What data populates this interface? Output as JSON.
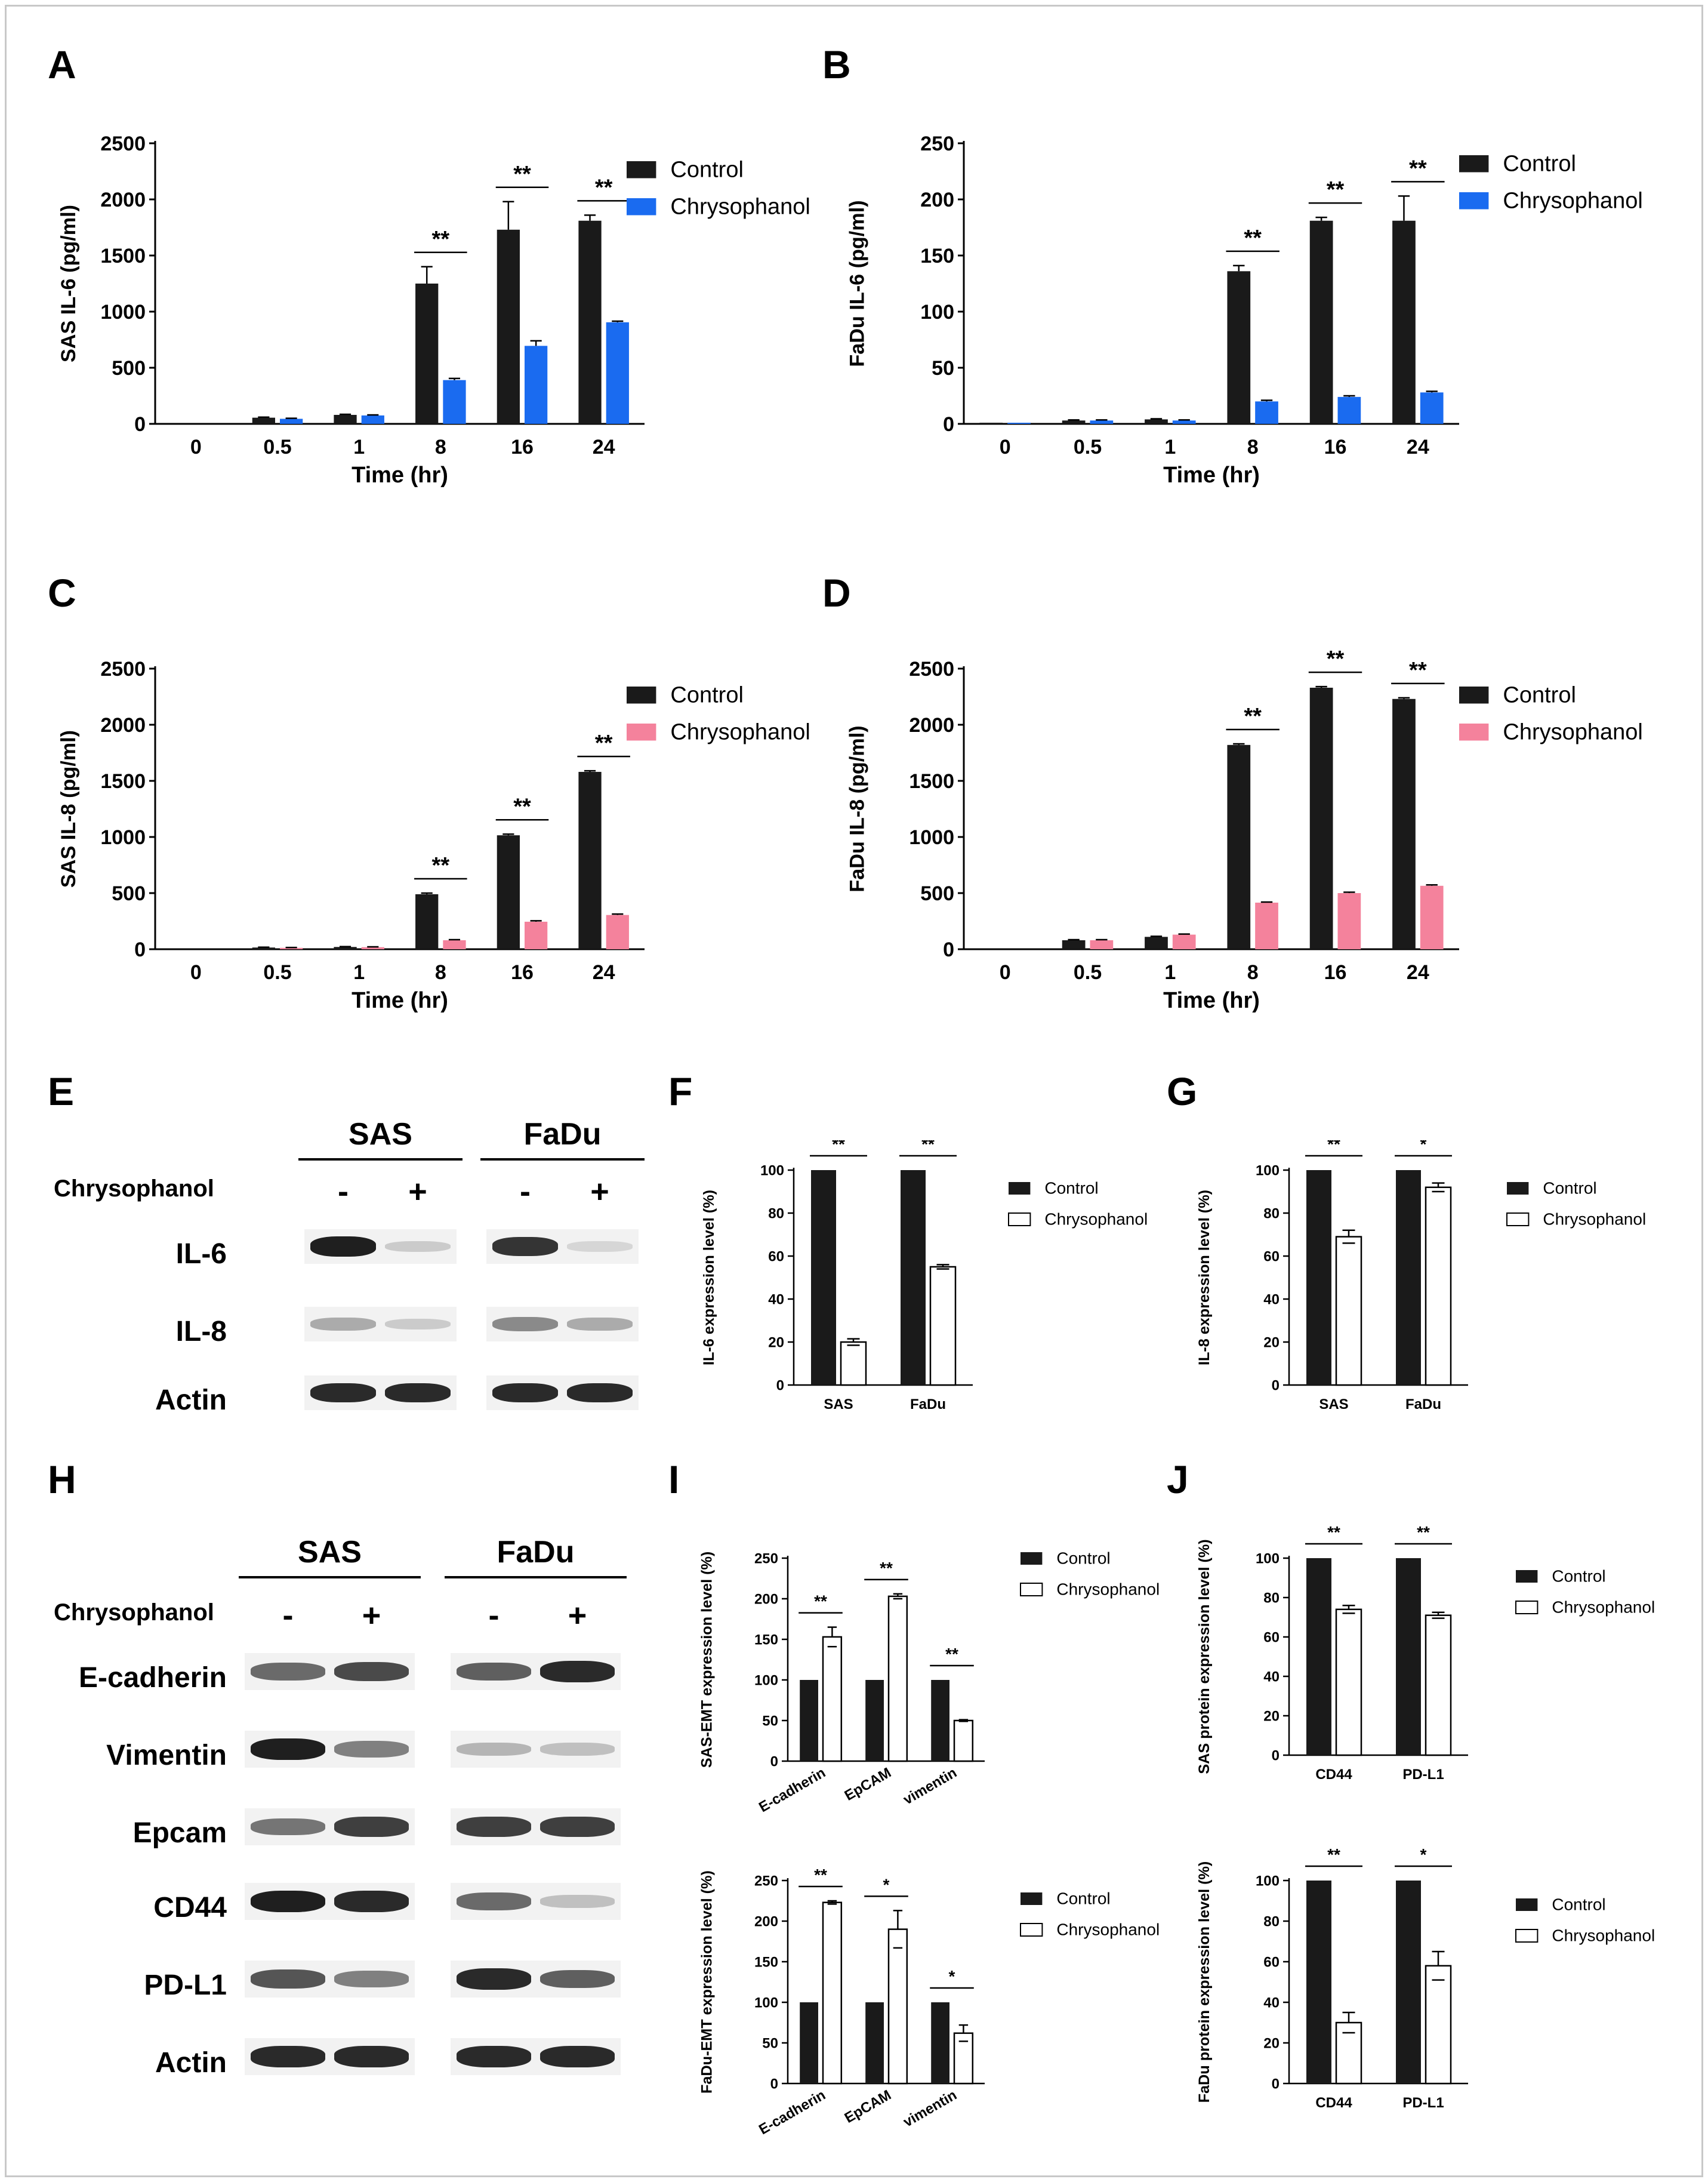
{
  "panel_letters": [
    "A",
    "B",
    "C",
    "D",
    "E",
    "F",
    "G",
    "H",
    "I",
    "J"
  ],
  "colors": {
    "control": "#1a1a1a",
    "blue": "#1a6bf0",
    "pink": "#f4829c",
    "open": "#ffffff"
  },
  "chart_data": [
    {
      "id": "A",
      "type": "bar",
      "categories": [
        "0",
        "0.5",
        "1",
        "8",
        "16",
        "24"
      ],
      "series": [
        {
          "name": "Control",
          "values": [
            0,
            55,
            80,
            1250,
            1730,
            1810
          ],
          "errors": [
            0,
            5,
            5,
            150,
            250,
            50
          ]
        },
        {
          "name": "Chrysophanol",
          "values": [
            0,
            45,
            75,
            390,
            695,
            905
          ],
          "errors": [
            0,
            5,
            5,
            15,
            45,
            10
          ]
        }
      ],
      "xlabel": "Time (hr)",
      "ylabel": "SAS IL-6 (pg/ml)",
      "ylim": [
        0,
        2500
      ],
      "yticks": [
        "0",
        "500",
        "1000",
        "1500",
        "2000",
        "2500"
      ],
      "sig": [
        {
          "cat": 3,
          "text": "**"
        },
        {
          "cat": 4,
          "text": "**"
        },
        {
          "cat": 5,
          "text": "**"
        }
      ],
      "legend": [
        "Control",
        "Chrysophanol"
      ]
    },
    {
      "id": "B",
      "type": "bar",
      "categories": [
        "0",
        "0.5",
        "1",
        "8",
        "16",
        "24"
      ],
      "series": [
        {
          "name": "Control",
          "values": [
            1,
            3,
            4,
            136,
            181,
            181
          ],
          "errors": [
            0,
            0.5,
            0.5,
            5,
            3,
            22
          ]
        },
        {
          "name": "Chrysophanol",
          "values": [
            1,
            3,
            3,
            20,
            24,
            28
          ],
          "errors": [
            0,
            0.5,
            0.5,
            1,
            1,
            1
          ]
        }
      ],
      "xlabel": "Time (hr)",
      "ylabel": "FaDu IL-6 (pg/ml)",
      "ylim": [
        0,
        250
      ],
      "yticks": [
        "0",
        "50",
        "100",
        "150",
        "200",
        "250"
      ],
      "sig": [
        {
          "cat": 3,
          "text": "**"
        },
        {
          "cat": 4,
          "text": "**"
        },
        {
          "cat": 5,
          "text": "**"
        }
      ],
      "legend": [
        "Control",
        "Chrysophanol"
      ]
    },
    {
      "id": "C",
      "type": "bar",
      "categories": [
        "0",
        "0.5",
        "1",
        "8",
        "16",
        "24"
      ],
      "series": [
        {
          "name": "Control",
          "values": [
            0,
            15,
            20,
            490,
            1015,
            1580
          ],
          "errors": [
            0,
            3,
            3,
            10,
            10,
            10
          ]
        },
        {
          "name": "Chrysophanol",
          "values": [
            0,
            12,
            18,
            80,
            245,
            305
          ],
          "errors": [
            0,
            3,
            3,
            5,
            8,
            8
          ]
        }
      ],
      "xlabel": "Time (hr)",
      "ylabel": "SAS IL-8 (pg/ml)",
      "ylim": [
        0,
        2500
      ],
      "yticks": [
        "0",
        "500",
        "1000",
        "1500",
        "2000",
        "2500"
      ],
      "sig": [
        {
          "cat": 3,
          "text": "**"
        },
        {
          "cat": 4,
          "text": "**"
        },
        {
          "cat": 5,
          "text": "**"
        }
      ],
      "legend": [
        "Control",
        "Chrysophanol"
      ]
    },
    {
      "id": "D",
      "type": "bar",
      "categories": [
        "0",
        "0.5",
        "1",
        "8",
        "16",
        "24"
      ],
      "series": [
        {
          "name": "Control",
          "values": [
            0,
            80,
            110,
            1820,
            2330,
            2230
          ],
          "errors": [
            0,
            5,
            5,
            10,
            10,
            10
          ]
        },
        {
          "name": "Chrysophanol",
          "values": [
            0,
            80,
            130,
            415,
            500,
            565
          ],
          "errors": [
            0,
            5,
            5,
            5,
            8,
            8
          ]
        }
      ],
      "xlabel": "Time (hr)",
      "ylabel": "FaDu IL-8 (pg/ml)",
      "ylim": [
        0,
        2500
      ],
      "yticks": [
        "0",
        "500",
        "1000",
        "1500",
        "2000",
        "2500"
      ],
      "sig": [
        {
          "cat": 3,
          "text": "**"
        },
        {
          "cat": 4,
          "text": "**"
        },
        {
          "cat": 5,
          "text": "**"
        }
      ],
      "legend": [
        "Control",
        "Chrysophanol"
      ]
    },
    {
      "id": "F",
      "type": "bar",
      "categories": [
        "SAS",
        "FaDu"
      ],
      "series": [
        {
          "name": "Control",
          "values": [
            100,
            100
          ],
          "errors": [
            0,
            0
          ]
        },
        {
          "name": "Chrysophanol",
          "values": [
            20,
            55
          ],
          "errors": [
            1.5,
            1
          ]
        }
      ],
      "xlabel": "",
      "ylabel": "IL-6 expression level (%)",
      "ylim": [
        0,
        100
      ],
      "yticks": [
        "0",
        "20",
        "40",
        "60",
        "80",
        "100"
      ],
      "sig": [
        {
          "cat": 0,
          "text": "**"
        },
        {
          "cat": 1,
          "text": "**"
        }
      ],
      "legend": [
        "Control",
        "Chrysophanol"
      ]
    },
    {
      "id": "G",
      "type": "bar",
      "categories": [
        "SAS",
        "FaDu"
      ],
      "series": [
        {
          "name": "Control",
          "values": [
            100,
            100
          ],
          "errors": [
            0,
            0
          ]
        },
        {
          "name": "Chrysophanol",
          "values": [
            69,
            92
          ],
          "errors": [
            3,
            2
          ]
        }
      ],
      "xlabel": "",
      "ylabel": "IL-8 expression level (%)",
      "ylim": [
        0,
        100
      ],
      "yticks": [
        "0",
        "20",
        "40",
        "60",
        "80",
        "100"
      ],
      "sig": [
        {
          "cat": 0,
          "text": "**"
        },
        {
          "cat": 1,
          "text": "*"
        }
      ],
      "legend": [
        "Control",
        "Chrysophanol"
      ]
    },
    {
      "id": "I1",
      "type": "bar",
      "categories": [
        "E-cadherin",
        "EpCAM",
        "vimentin"
      ],
      "series": [
        {
          "name": "Control",
          "values": [
            100,
            100,
            100
          ],
          "errors": [
            0,
            0,
            0
          ]
        },
        {
          "name": "Chrysophanol",
          "values": [
            153,
            203,
            50
          ],
          "errors": [
            12,
            3,
            1
          ]
        }
      ],
      "xlabel": "",
      "ylabel": "SAS-EMT expression level (%)",
      "ylim": [
        0,
        250
      ],
      "yticks": [
        "0",
        "50",
        "100",
        "150",
        "200",
        "250"
      ],
      "sig": [
        {
          "cat": 0,
          "text": "**"
        },
        {
          "cat": 1,
          "text": "**"
        },
        {
          "cat": 2,
          "text": "**"
        }
      ],
      "legend": [
        "Control",
        "Chrysophanol"
      ]
    },
    {
      "id": "I2",
      "type": "bar",
      "categories": [
        "E-cadherin",
        "EpCAM",
        "vimentin"
      ],
      "series": [
        {
          "name": "Control",
          "values": [
            100,
            100,
            100
          ],
          "errors": [
            0,
            0,
            0
          ]
        },
        {
          "name": "Chrysophanol",
          "values": [
            223,
            190,
            62
          ],
          "errors": [
            2,
            23,
            10
          ]
        }
      ],
      "xlabel": "",
      "ylabel": "FaDu-EMT expression level (%)",
      "ylim": [
        0,
        250
      ],
      "yticks": [
        "0",
        "50",
        "100",
        "150",
        "200",
        "250"
      ],
      "sig": [
        {
          "cat": 0,
          "text": "**"
        },
        {
          "cat": 1,
          "text": "*"
        },
        {
          "cat": 2,
          "text": "*"
        }
      ],
      "legend": [
        "Control",
        "Chrysophanol"
      ]
    },
    {
      "id": "J1",
      "type": "bar",
      "categories": [
        "CD44",
        "PD-L1"
      ],
      "series": [
        {
          "name": "Control",
          "values": [
            100,
            100
          ],
          "errors": [
            0,
            0
          ]
        },
        {
          "name": "Chrysophanol",
          "values": [
            74,
            71
          ],
          "errors": [
            2,
            1.5
          ]
        }
      ],
      "xlabel": "",
      "ylabel": "SAS protein expression level (%)",
      "ylim": [
        0,
        100
      ],
      "yticks": [
        "0",
        "20",
        "40",
        "60",
        "80",
        "100"
      ],
      "sig": [
        {
          "cat": 0,
          "text": "**"
        },
        {
          "cat": 1,
          "text": "**"
        }
      ],
      "legend": [
        "Control",
        "Chrysophanol"
      ]
    },
    {
      "id": "J2",
      "type": "bar",
      "categories": [
        "CD44",
        "PD-L1"
      ],
      "series": [
        {
          "name": "Control",
          "values": [
            100,
            100
          ],
          "errors": [
            0,
            0
          ]
        },
        {
          "name": "Chrysophanol",
          "values": [
            30,
            58
          ],
          "errors": [
            5,
            7
          ]
        }
      ],
      "xlabel": "",
      "ylabel": "FaDu protein expression level (%)",
      "ylim": [
        0,
        100
      ],
      "yticks": [
        "0",
        "20",
        "40",
        "60",
        "80",
        "100"
      ],
      "sig": [
        {
          "cat": 0,
          "text": "**"
        },
        {
          "cat": 1,
          "text": "*"
        }
      ],
      "legend": [
        "Control",
        "Chrysophanol"
      ]
    }
  ],
  "blot_E": {
    "groups": [
      "SAS",
      "FaDu"
    ],
    "treatment_label": "Chrysophanol",
    "signs": [
      "-",
      "+",
      "-",
      "+"
    ],
    "rows": [
      {
        "label": "IL-6",
        "intensities": [
          0.95,
          0.15,
          0.85,
          0.1
        ]
      },
      {
        "label": "IL-8",
        "intensities": [
          0.3,
          0.15,
          0.45,
          0.3
        ]
      },
      {
        "label": "Actin",
        "intensities": [
          0.9,
          0.9,
          0.9,
          0.9
        ]
      }
    ]
  },
  "blot_H": {
    "groups": [
      "SAS",
      "FaDu"
    ],
    "treatment_label": "Chrysophanol",
    "signs": [
      "-",
      "+",
      "-",
      "+"
    ],
    "rows": [
      {
        "label": "E-cadherin",
        "intensities": [
          0.6,
          0.75,
          0.65,
          0.9
        ]
      },
      {
        "label": "Vimentin",
        "intensities": [
          0.95,
          0.5,
          0.25,
          0.2
        ]
      },
      {
        "label": "Epcam",
        "intensities": [
          0.55,
          0.8,
          0.8,
          0.8
        ]
      },
      {
        "label": "CD44",
        "intensities": [
          0.95,
          0.9,
          0.6,
          0.2
        ]
      },
      {
        "label": "PD-L1",
        "intensities": [
          0.7,
          0.5,
          0.9,
          0.65
        ]
      },
      {
        "label": "Actin",
        "intensities": [
          0.9,
          0.9,
          0.9,
          0.9
        ]
      }
    ]
  }
}
